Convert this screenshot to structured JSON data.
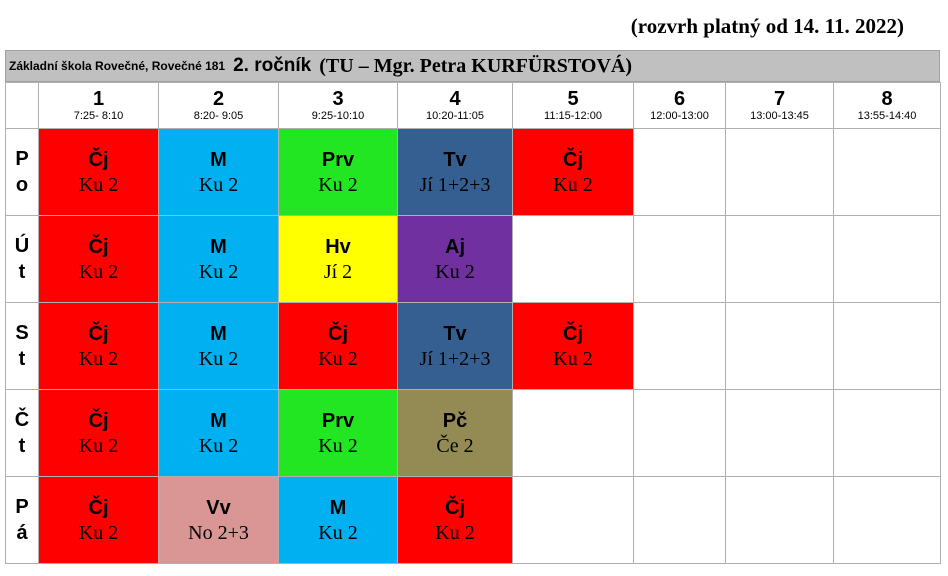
{
  "header": {
    "validity": "(rozvrh platný od 14. 11. 2022)",
    "school": "Základní škola Rovečné, Rovečné 181",
    "class": "2. ročník",
    "teacher": "(TU – Mgr. Petra KURFÜRSTOVÁ)"
  },
  "table": {
    "periods": [
      {
        "number": "1",
        "time": "7:25- 8:10"
      },
      {
        "number": "2",
        "time": "8:20- 9:05"
      },
      {
        "number": "3",
        "time": "9:25-10:10"
      },
      {
        "number": "4",
        "time": "10:20-11:05"
      },
      {
        "number": "5",
        "time": "11:15-12:00"
      },
      {
        "number": "6",
        "time": "12:00-13:00"
      },
      {
        "number": "7",
        "time": "13:00-13:45"
      },
      {
        "number": "8",
        "time": "13:55-14:40"
      }
    ],
    "days": [
      {
        "label_lines": [
          "P",
          "o"
        ],
        "lessons": [
          {
            "subject": "Čj",
            "room": "Ku 2",
            "color": "#ff0000"
          },
          {
            "subject": "M",
            "room": "Ku 2",
            "color": "#00b0f0"
          },
          {
            "subject": "Prv",
            "room": "Ku 2",
            "color": "#22e622"
          },
          {
            "subject": "Tv",
            "room": "Jí 1+2+3",
            "color": "#365f91"
          },
          {
            "subject": "Čj",
            "room": "Ku 2",
            "color": "#ff0000"
          }
        ]
      },
      {
        "label_lines": [
          "Ú",
          "t"
        ],
        "lessons": [
          {
            "subject": "Čj",
            "room": "Ku 2",
            "color": "#ff0000"
          },
          {
            "subject": "M",
            "room": "Ku 2",
            "color": "#00b0f0"
          },
          {
            "subject": "Hv",
            "room": "Jí 2",
            "color": "#ffff00"
          },
          {
            "subject": "Aj",
            "room": "Ku 2",
            "color": "#7030a0"
          }
        ]
      },
      {
        "label_lines": [
          "S",
          "t"
        ],
        "lessons": [
          {
            "subject": "Čj",
            "room": "Ku 2",
            "color": "#ff0000"
          },
          {
            "subject": "M",
            "room": "Ku 2",
            "color": "#00b0f0"
          },
          {
            "subject": "Čj",
            "room": "Ku 2",
            "color": "#ff0000"
          },
          {
            "subject": "Tv",
            "room": "Jí 1+2+3",
            "color": "#365f91"
          },
          {
            "subject": "Čj",
            "room": "Ku 2",
            "color": "#ff0000"
          }
        ]
      },
      {
        "label_lines": [
          "Č",
          "t"
        ],
        "lessons": [
          {
            "subject": "Čj",
            "room": "Ku 2",
            "color": "#ff0000"
          },
          {
            "subject": "M",
            "room": "Ku 2",
            "color": "#00b0f0"
          },
          {
            "subject": "Prv",
            "room": "Ku 2",
            "color": "#22e622"
          },
          {
            "subject": "Pč",
            "room": "Če 2",
            "color": "#948a54"
          }
        ]
      },
      {
        "label_lines": [
          "P",
          "á"
        ],
        "lessons": [
          {
            "subject": "Čj",
            "room": "Ku 2",
            "color": "#ff0000"
          },
          {
            "subject": "Vv",
            "room": "No 2+3",
            "color": "#d99694"
          },
          {
            "subject": "M",
            "room": "Ku 2",
            "color": "#00b0f0"
          },
          {
            "subject": "Čj",
            "room": "Ku 2",
            "color": "#ff0000"
          }
        ]
      }
    ]
  }
}
